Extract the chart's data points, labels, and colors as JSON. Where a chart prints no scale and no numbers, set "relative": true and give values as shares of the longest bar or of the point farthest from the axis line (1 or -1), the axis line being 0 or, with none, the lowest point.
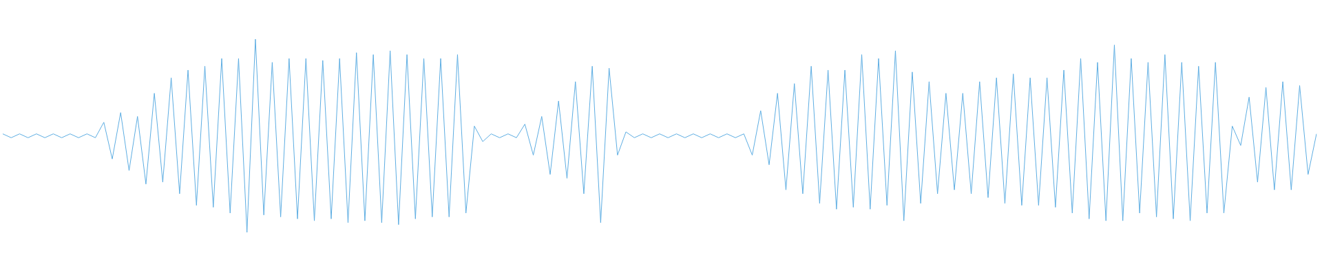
{
  "chart_data": {
    "type": "line",
    "relative": true,
    "color": "#5dade2",
    "grid": false,
    "legend": false,
    "marker": "none",
    "line_style": "solid",
    "categories": [
      null,
      null,
      null,
      null,
      null,
      null,
      null,
      null,
      null,
      null,
      null,
      null,
      null,
      null,
      null,
      null,
      null,
      null,
      null,
      null,
      null,
      null,
      null,
      null,
      null,
      null,
      null,
      null,
      null,
      null,
      null,
      null,
      null,
      null,
      null,
      null,
      null,
      null,
      null,
      null,
      null,
      null,
      null,
      null,
      null,
      null,
      null,
      null,
      null,
      null,
      null,
      null,
      null,
      null,
      null,
      null,
      null,
      null,
      null,
      null,
      null,
      null,
      null,
      null,
      null,
      null,
      null,
      null,
      null,
      null,
      null,
      null,
      null,
      null,
      null,
      null,
      null,
      null,
      null,
      null,
      null,
      null,
      null,
      null,
      null,
      null,
      null,
      null,
      null,
      null,
      null,
      null,
      null,
      null,
      null,
      null,
      null,
      null,
      null,
      null,
      null,
      null,
      null,
      null,
      null,
      null,
      null,
      null,
      null,
      null,
      null,
      null,
      null,
      null,
      null,
      null,
      null,
      null,
      null,
      null,
      null,
      null,
      null,
      null,
      null,
      null,
      null,
      null,
      null,
      null,
      null,
      null,
      null,
      null,
      null,
      null,
      null,
      null,
      null,
      null,
      null,
      null,
      null,
      null,
      null,
      null,
      null,
      null,
      null,
      null,
      null,
      null,
      null,
      null,
      null,
      null,
      null
    ],
    "values": [
      0.51,
      0.49,
      0.51,
      0.49,
      0.51,
      0.49,
      0.51,
      0.49,
      0.51,
      0.49,
      0.51,
      0.49,
      0.57,
      0.38,
      0.62,
      0.32,
      0.6,
      0.25,
      0.72,
      0.26,
      0.8,
      0.2,
      0.84,
      0.14,
      0.86,
      0.13,
      0.9,
      0.1,
      0.9,
      0.0,
      1.0,
      0.09,
      0.88,
      0.08,
      0.9,
      0.07,
      0.9,
      0.06,
      0.89,
      0.07,
      0.9,
      0.05,
      0.93,
      0.06,
      0.92,
      0.05,
      0.94,
      0.04,
      0.92,
      0.07,
      0.9,
      0.08,
      0.9,
      0.08,
      0.92,
      0.1,
      0.55,
      0.47,
      0.51,
      0.49,
      0.51,
      0.49,
      0.56,
      0.4,
      0.6,
      0.3,
      0.68,
      0.28,
      0.78,
      0.2,
      0.86,
      0.05,
      0.85,
      0.4,
      0.52,
      0.49,
      0.51,
      0.49,
      0.51,
      0.49,
      0.51,
      0.49,
      0.51,
      0.49,
      0.51,
      0.49,
      0.51,
      0.49,
      0.51,
      0.4,
      0.63,
      0.35,
      0.72,
      0.22,
      0.77,
      0.2,
      0.86,
      0.15,
      0.84,
      0.12,
      0.84,
      0.13,
      0.92,
      0.12,
      0.9,
      0.14,
      0.94,
      0.06,
      0.83,
      0.15,
      0.78,
      0.2,
      0.72,
      0.22,
      0.72,
      0.2,
      0.78,
      0.18,
      0.8,
      0.15,
      0.82,
      0.14,
      0.8,
      0.14,
      0.8,
      0.13,
      0.84,
      0.1,
      0.9,
      0.07,
      0.88,
      0.06,
      0.97,
      0.06,
      0.9,
      0.1,
      0.88,
      0.08,
      0.92,
      0.07,
      0.88,
      0.06,
      0.86,
      0.1,
      0.88,
      0.1,
      0.55,
      0.45,
      0.7,
      0.26,
      0.75,
      0.22,
      0.78,
      0.22,
      0.76,
      0.3,
      0.51
    ]
  }
}
